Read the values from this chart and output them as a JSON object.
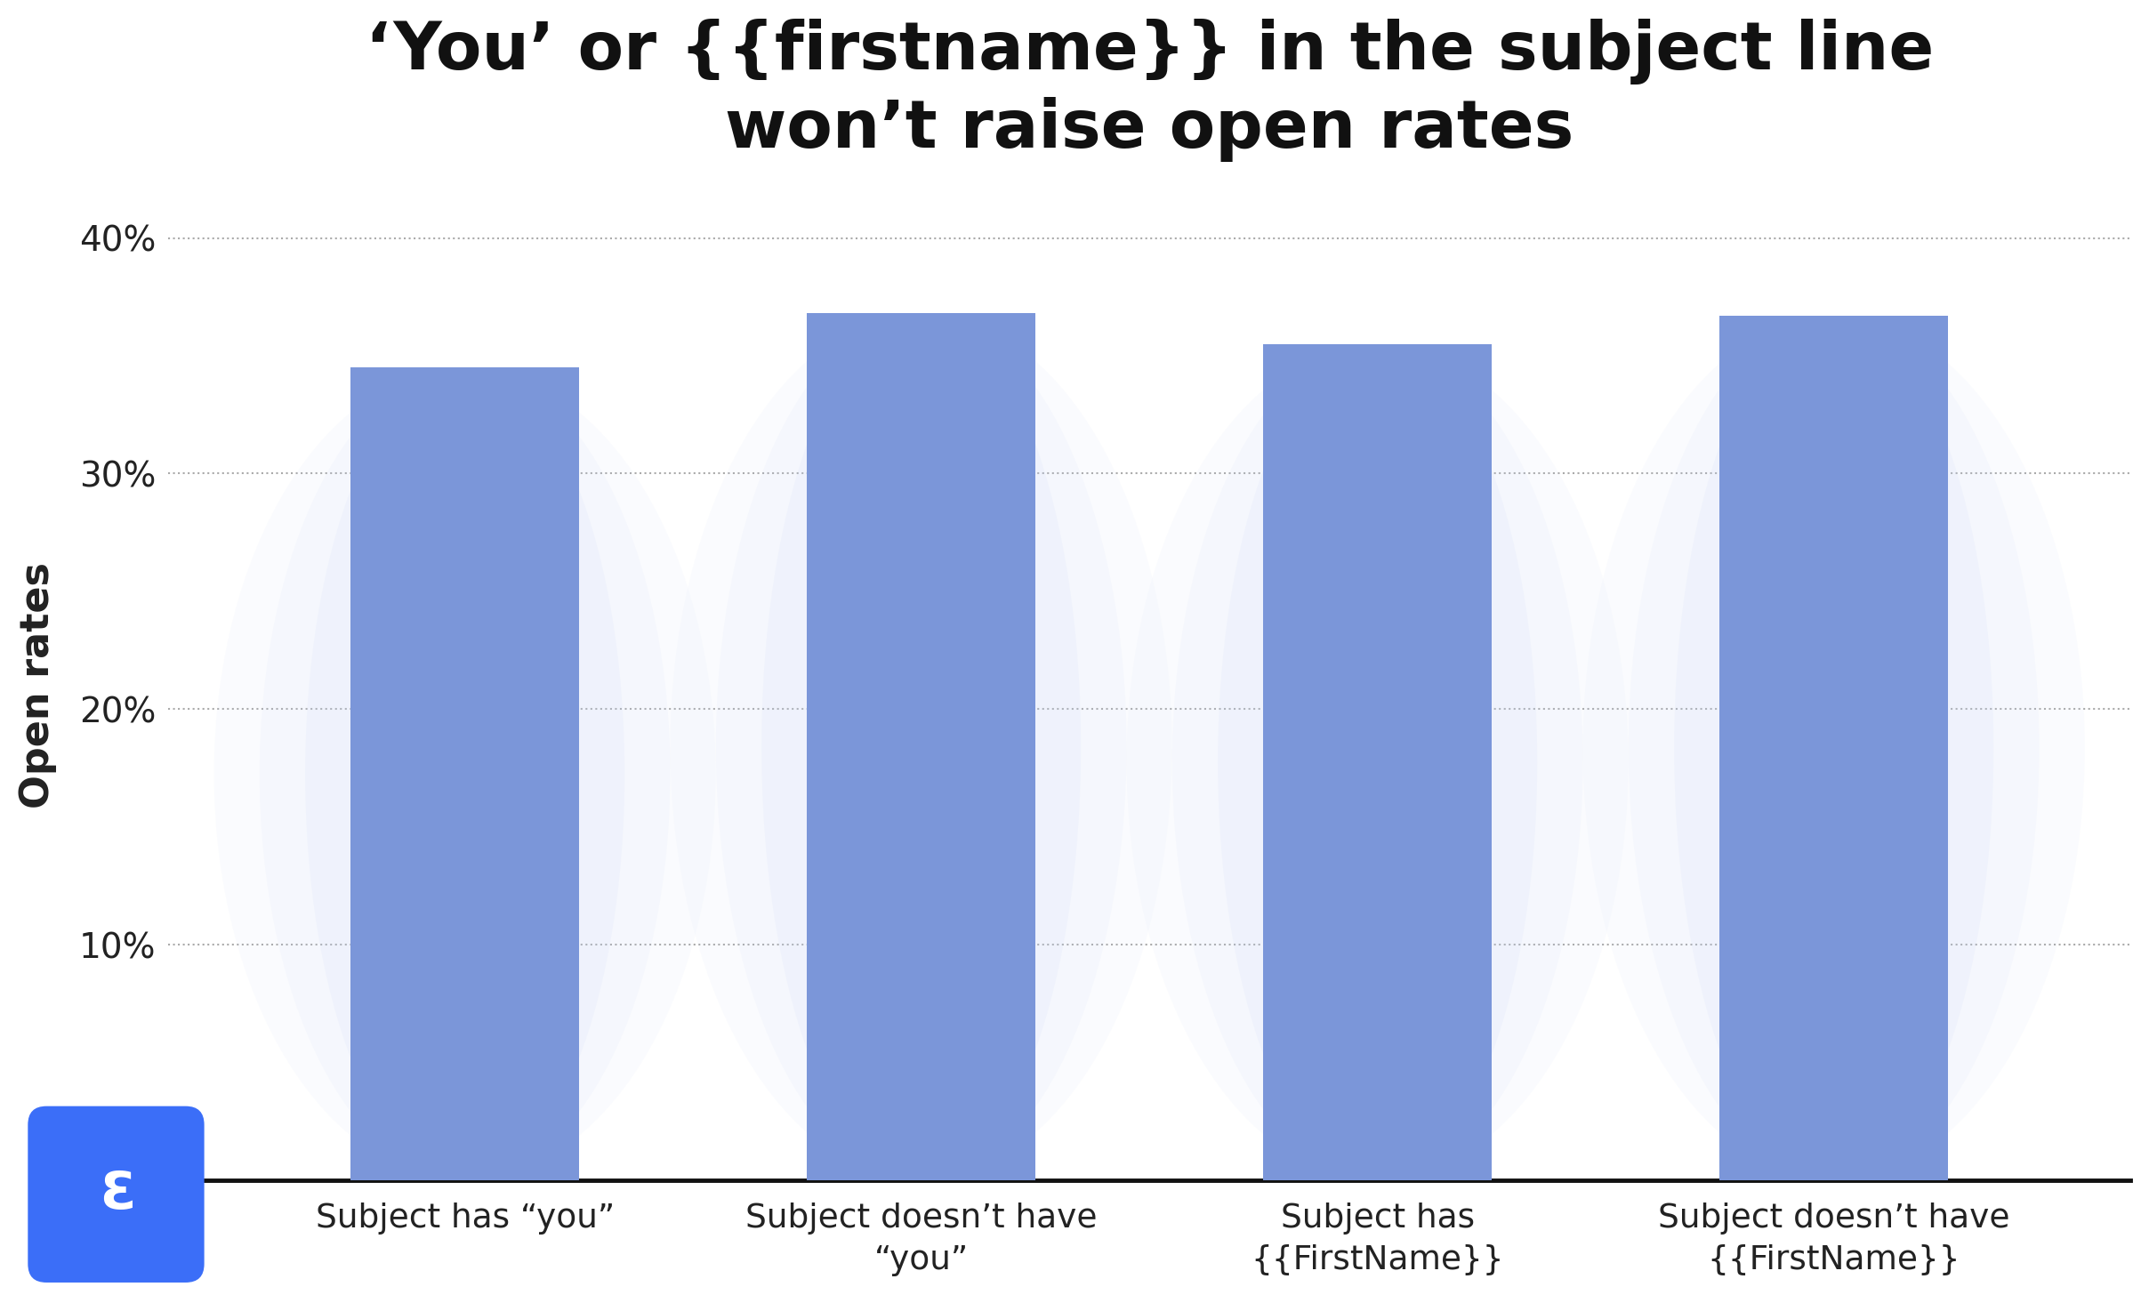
{
  "title_line1": "‘You’ or {{firstname}} in the subject line",
  "title_line2": "won’t raise open rates",
  "ylabel": "Open rates",
  "categories": [
    "Subject has “you”",
    "Subject doesn’t have\n“you”",
    "Subject has\n{{FirstName}}",
    "Subject doesn’t have\n{{FirstName}}"
  ],
  "values": [
    34.5,
    36.8,
    35.5,
    36.7
  ],
  "bar_color": "#7B96D9",
  "background_color": "#ffffff",
  "yticks": [
    0,
    10,
    20,
    30,
    40
  ],
  "ylim": [
    0,
    42
  ],
  "grid_color": "#aaaaaa",
  "axis_line_color": "#111111",
  "title_fontsize": 54,
  "ylabel_fontsize": 32,
  "tick_fontsize": 28,
  "xtick_fontsize": 27,
  "bar_width": 0.5,
  "title_color": "#111111",
  "tick_color": "#222222",
  "logo_color": "#3b6ef8"
}
